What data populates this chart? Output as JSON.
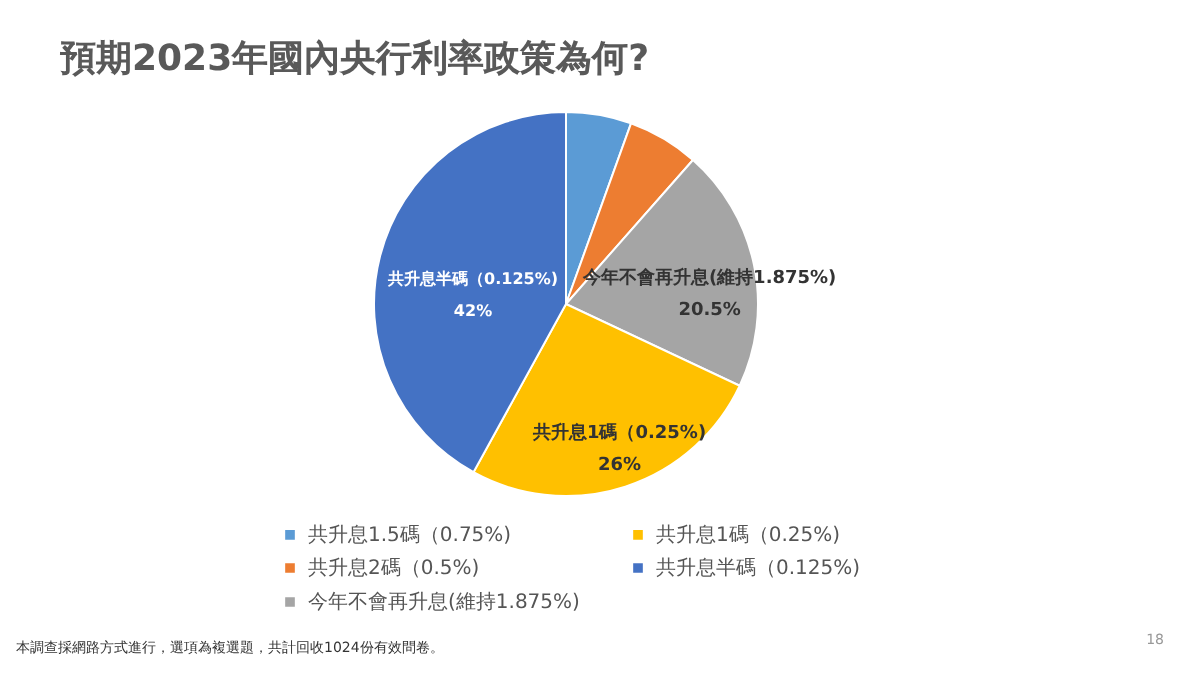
{
  "chart_data": {
    "type": "pie",
    "title": "預期2023年國內央行利率政策為何?",
    "categories": [
      "共升息1.5碼（0.75%)",
      "共升息2碼（0.5%)",
      "今年不會再升息(維持1.875%)",
      "共升息1碼（0.25%)",
      "共升息半碼（0.125%)"
    ],
    "values": [
      5.5,
      6.0,
      20.5,
      26,
      42
    ],
    "colors": [
      "#5b9bd5",
      "#ed7d31",
      "#a5a5a5",
      "#ffc000",
      "#4472c4"
    ],
    "value_labels": [
      null,
      null,
      "20.5%",
      "26%",
      "42%"
    ],
    "legend": "bottom",
    "annotations": [
      "本調查採網路方式進行，選項為複選題，共計回收1024份有效問卷。",
      "18"
    ]
  }
}
